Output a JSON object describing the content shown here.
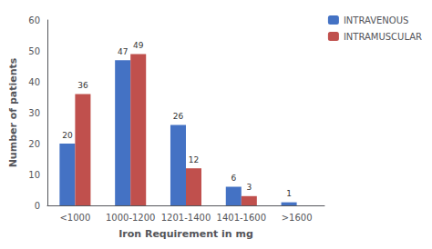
{
  "chart_data": {
    "type": "bar",
    "categories": [
      "<1000",
      "1000-1200",
      "1201-1400",
      "1401-1600",
      ">1600"
    ],
    "series": [
      {
        "name": "INTRAVENOUS",
        "color": "#4472c4",
        "values": [
          20,
          47,
          26,
          6,
          1
        ]
      },
      {
        "name": "INTRAMUSCULAR",
        "color": "#c0504d",
        "values": [
          36,
          49,
          12,
          3,
          0
        ],
        "value_labels": [
          "36",
          "49",
          "12",
          "3",
          null
        ]
      }
    ],
    "xlabel": "Iron Requirement in mg",
    "ylabel": "Number of patients",
    "ylim": [
      0,
      60
    ],
    "yticks": [
      0,
      10,
      20,
      30,
      40,
      50,
      60
    ],
    "grid": false,
    "legend": "upper right",
    "data_labels": true
  }
}
